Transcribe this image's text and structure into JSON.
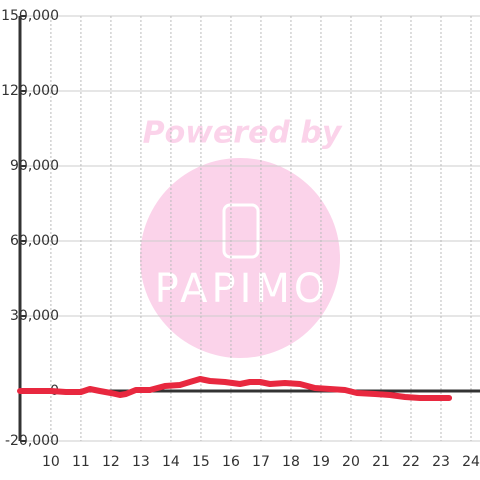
{
  "chart_data": {
    "type": "line",
    "watermark": "Powered by",
    "watermark_logo": "PAPIMO",
    "x": [
      8.97,
      10,
      10.5,
      11,
      11.3,
      11.63,
      12,
      12.3,
      12.5,
      12.83,
      13.3,
      13.8,
      14.3,
      14.63,
      14.97,
      15.3,
      15.8,
      16.3,
      16.63,
      16.97,
      17.3,
      17.8,
      18.3,
      18.8,
      19.3,
      19.8,
      20.2,
      20.8,
      21.3,
      21.8,
      22.3,
      23.27
    ],
    "series": [
      {
        "color": "#e8283f",
        "values": [
          0,
          0,
          -400,
          -400,
          800,
          0,
          -800,
          -1600,
          -1200,
          400,
          400,
          2000,
          2400,
          3600,
          4800,
          4000,
          3600,
          2800,
          3600,
          3600,
          2800,
          3200,
          2800,
          1200,
          800,
          400,
          -800,
          -1200,
          -1600,
          -2400,
          -2800,
          -2800
        ]
      }
    ],
    "xlim": [
      8.97,
      24.3
    ],
    "xticks": [
      10,
      11,
      12,
      13,
      14,
      15,
      16,
      17,
      18,
      19,
      20,
      21,
      22,
      23,
      24
    ],
    "ylim": [
      -20000,
      150000
    ],
    "yticks": [
      {
        "value": -20000,
        "label": "-20,000"
      },
      {
        "value": 0,
        "label": "0"
      },
      {
        "value": 30000,
        "label": "30,000"
      },
      {
        "value": 60000,
        "label": "60,000"
      },
      {
        "value": 90000,
        "label": "90,000"
      },
      {
        "value": 120000,
        "label": "120,000"
      },
      {
        "value": 150000,
        "label": "150,000"
      }
    ],
    "grid": true
  }
}
